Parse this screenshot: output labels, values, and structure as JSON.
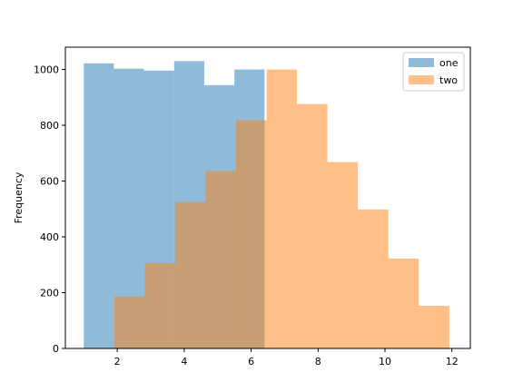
{
  "chart_data": {
    "type": "bar",
    "ylabel": "Frequency",
    "xlim": [
      0.45,
      12.55
    ],
    "ylim": [
      0,
      1080
    ],
    "xticks": [
      2,
      4,
      6,
      8,
      10,
      12
    ],
    "yticks": [
      0,
      200,
      400,
      600,
      800,
      1000
    ],
    "legend_position": "top-right",
    "series": [
      {
        "name": "one",
        "color": "#1f77b4",
        "opacity": 0.5,
        "bins": [
          {
            "x0": 1.0,
            "x1": 1.9,
            "value": 1022
          },
          {
            "x0": 1.9,
            "x1": 2.8,
            "value": 1003
          },
          {
            "x0": 2.8,
            "x1": 3.7,
            "value": 996
          },
          {
            "x0": 3.7,
            "x1": 4.6,
            "value": 1030
          },
          {
            "x0": 4.6,
            "x1": 5.5,
            "value": 944
          },
          {
            "x0": 5.5,
            "x1": 6.4,
            "value": 1000
          }
        ]
      },
      {
        "name": "two",
        "color": "#ff7f0e",
        "opacity": 0.5,
        "bins": [
          {
            "x0": 1.91,
            "x1": 2.82,
            "value": 186
          },
          {
            "x0": 2.82,
            "x1": 3.73,
            "value": 306
          },
          {
            "x0": 3.73,
            "x1": 4.64,
            "value": 525
          },
          {
            "x0": 4.64,
            "x1": 5.55,
            "value": 636
          },
          {
            "x0": 5.55,
            "x1": 6.46,
            "value": 818
          },
          {
            "x0": 6.46,
            "x1": 7.37,
            "value": 1000
          },
          {
            "x0": 7.37,
            "x1": 8.28,
            "value": 876
          },
          {
            "x0": 8.28,
            "x1": 9.19,
            "value": 668
          },
          {
            "x0": 9.19,
            "x1": 10.1,
            "value": 498
          },
          {
            "x0": 10.1,
            "x1": 11.01,
            "value": 322
          },
          {
            "x0": 11.01,
            "x1": 11.92,
            "value": 153
          }
        ]
      }
    ]
  }
}
